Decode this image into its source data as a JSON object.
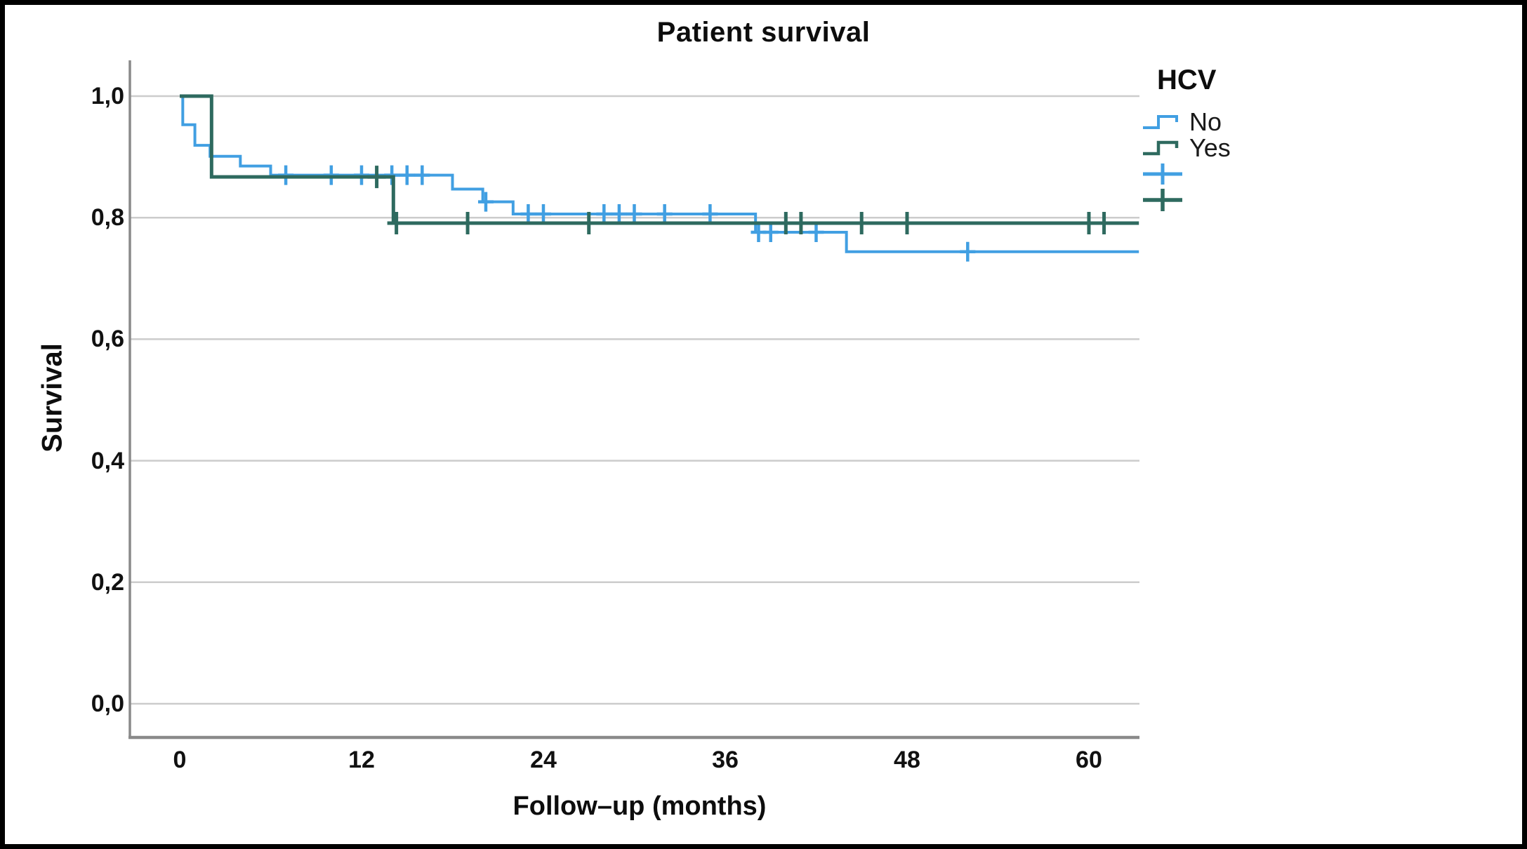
{
  "figure": {
    "title": "Patient survival"
  },
  "axes": {
    "x": {
      "label": "Follow–up (months)",
      "ticks": [
        "0",
        "12",
        "24",
        "36",
        "48",
        "60"
      ],
      "tick_values": [
        0,
        12,
        24,
        36,
        48,
        60
      ]
    },
    "y": {
      "label": "Survival",
      "ticks": [
        "1,0",
        "0,8",
        "0,6",
        "0,4",
        "0,2",
        "0,0"
      ],
      "tick_values": [
        1.0,
        0.8,
        0.6,
        0.4,
        0.2,
        0.0
      ]
    }
  },
  "legend": {
    "title": "HCV",
    "items": [
      {
        "label": "No"
      },
      {
        "label": "Yes"
      }
    ]
  },
  "colors": {
    "no_group": "#419fe2",
    "yes_group": "#2e6a5f",
    "gridline": "#cccccc",
    "axis": "#8a8a8a",
    "text": "#0d0d0d"
  },
  "chart_data": {
    "type": "line",
    "subtype": "kaplan-meier-step",
    "title": "Patient survival",
    "xlabel": "Follow–up (months)",
    "ylabel": "Survival",
    "xlim": [
      -3.3,
      63.3
    ],
    "ylim": [
      0.0,
      1.0
    ],
    "grid": "horizontal-only",
    "legend_position": "top-right",
    "series": [
      {
        "name": "No",
        "color": "#419fe2",
        "steps": [
          [
            0,
            1.0
          ],
          [
            0.2,
            0.953
          ],
          [
            1,
            0.919
          ],
          [
            2,
            0.901
          ],
          [
            4,
            0.885
          ],
          [
            6,
            0.87
          ],
          [
            18,
            0.847
          ],
          [
            20,
            0.826
          ],
          [
            22,
            0.806
          ],
          [
            38,
            0.776
          ],
          [
            44,
            0.744
          ]
        ],
        "end_month": 63.3,
        "censor_months": [
          7,
          10,
          12,
          14,
          15,
          16,
          20.2,
          23,
          24,
          28,
          29,
          30,
          32,
          35,
          38.2,
          39,
          42,
          52
        ]
      },
      {
        "name": "Yes",
        "color": "#2e6a5f",
        "steps": [
          [
            0,
            1.0
          ],
          [
            2.1,
            0.867
          ],
          [
            14.1,
            0.791
          ]
        ],
        "end_month": 63.3,
        "censor_months": [
          13,
          14.3,
          19,
          27,
          40,
          41,
          45,
          48,
          60,
          61
        ]
      }
    ]
  }
}
